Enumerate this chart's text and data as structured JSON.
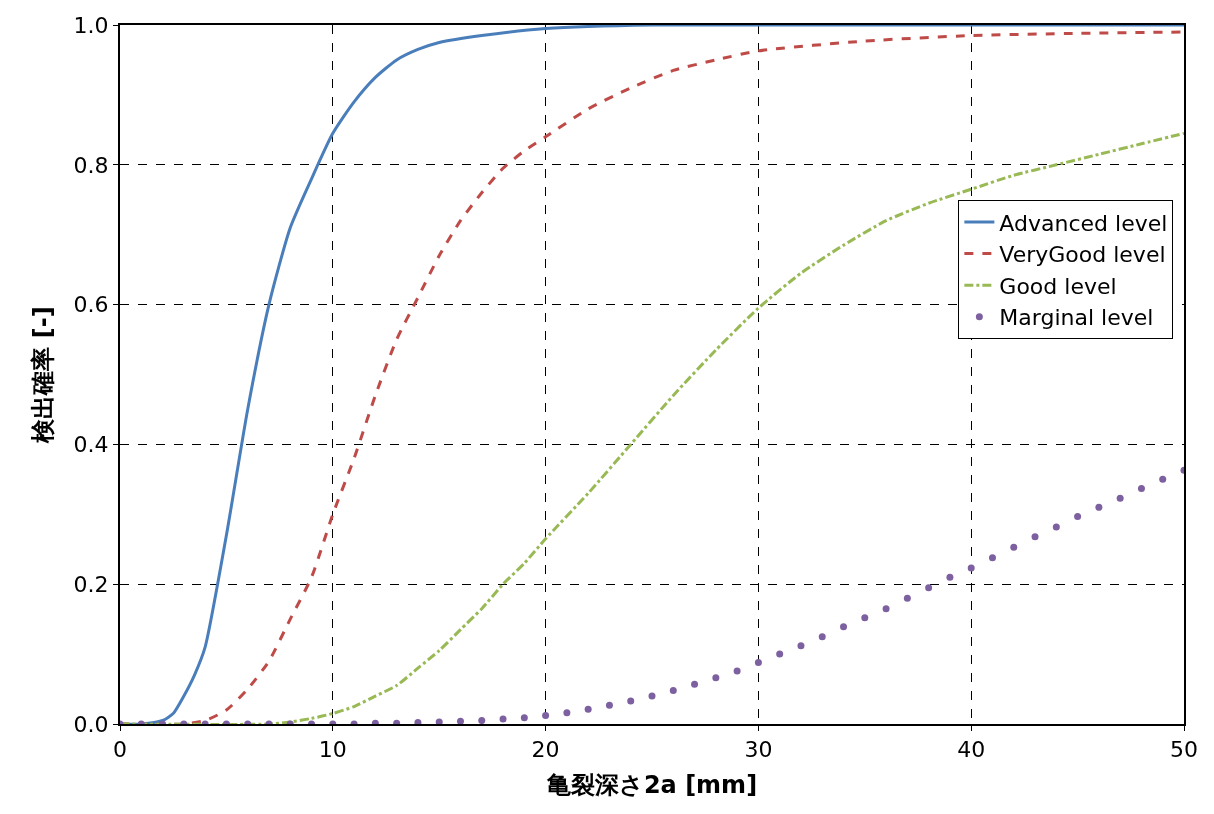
{
  "chart_data": {
    "type": "line",
    "xlabel": "亀裂深さ2a [mm]",
    "ylabel": "検出確率 [-]",
    "xlim": [
      0,
      50
    ],
    "xticks": [
      0,
      10,
      20,
      30,
      40,
      50
    ],
    "ylim": [
      0,
      1
    ],
    "yticks": [
      {
        "value": 0,
        "label": "0.0"
      },
      {
        "value": 0.2,
        "label": "0.2"
      },
      {
        "value": 0.4,
        "label": "0.4"
      },
      {
        "value": 0.6,
        "label": "0.6"
      },
      {
        "value": 0.8,
        "label": "0.8"
      },
      {
        "value": 1,
        "label": "1.0"
      }
    ],
    "grid": true,
    "legend": "right",
    "series": [
      {
        "name": "Advanced level",
        "color": "#4a7ebb",
        "line_style": "solid",
        "x": [
          0,
          1,
          2,
          2.5,
          3,
          3.5,
          4,
          5,
          6,
          7,
          8,
          9,
          10,
          11,
          12,
          13,
          14,
          15,
          17,
          20,
          25,
          50
        ],
        "values": [
          0,
          0,
          0.005,
          0.015,
          0.04,
          0.07,
          0.11,
          0.27,
          0.45,
          0.6,
          0.71,
          0.78,
          0.845,
          0.89,
          0.925,
          0.95,
          0.965,
          0.975,
          0.985,
          0.995,
          1,
          1
        ]
      },
      {
        "name": "VeryGood level",
        "color": "#be4b48",
        "line_style": "dashed",
        "x": [
          0,
          3,
          4,
          5,
          6,
          7,
          8,
          9,
          10,
          11,
          12,
          13,
          14,
          15,
          16,
          17,
          18,
          19,
          20,
          22,
          24,
          26,
          28,
          30,
          35,
          40,
          45,
          50
        ],
        "values": [
          0,
          0,
          0.005,
          0.02,
          0.05,
          0.09,
          0.15,
          0.21,
          0.3,
          0.38,
          0.47,
          0.55,
          0.61,
          0.67,
          0.72,
          0.76,
          0.795,
          0.82,
          0.84,
          0.88,
          0.91,
          0.935,
          0.95,
          0.963,
          0.977,
          0.985,
          0.988,
          0.99
        ]
      },
      {
        "name": "Good level",
        "color": "#98b954",
        "line_style": "dashdot",
        "x": [
          0,
          7,
          8,
          9,
          10,
          11,
          12,
          13,
          14,
          15,
          16,
          17,
          18,
          19,
          20,
          22,
          24,
          26,
          28,
          30,
          32,
          34,
          36,
          38,
          40,
          42,
          44,
          46,
          48,
          50
        ],
        "values": [
          0,
          0,
          0.003,
          0.008,
          0.015,
          0.025,
          0.04,
          0.055,
          0.08,
          0.105,
          0.135,
          0.165,
          0.2,
          0.23,
          0.265,
          0.33,
          0.4,
          0.47,
          0.535,
          0.595,
          0.645,
          0.685,
          0.72,
          0.745,
          0.765,
          0.785,
          0.8,
          0.815,
          0.83,
          0.845
        ]
      },
      {
        "name": "Marginal level",
        "color": "#7d60a0",
        "type": "scatter",
        "marker": "circle",
        "x": [
          0,
          1,
          2,
          3,
          4,
          5,
          6,
          7,
          8,
          9,
          10,
          11,
          12,
          13,
          14,
          15,
          16,
          17,
          18,
          19,
          20,
          21,
          22,
          23,
          24,
          25,
          26,
          27,
          28,
          29,
          30,
          31,
          32,
          33,
          34,
          35,
          36,
          37,
          38,
          39,
          40,
          41,
          42,
          43,
          44,
          45,
          46,
          47,
          48,
          49,
          50
        ],
        "values": [
          0,
          0,
          0,
          0,
          0,
          0,
          0,
          0,
          0,
          0,
          0,
          0,
          0.001,
          0.001,
          0.002,
          0.003,
          0.004,
          0.005,
          0.007,
          0.009,
          0.012,
          0.016,
          0.021,
          0.027,
          0.033,
          0.04,
          0.048,
          0.057,
          0.066,
          0.076,
          0.088,
          0.1,
          0.112,
          0.125,
          0.139,
          0.152,
          0.165,
          0.18,
          0.195,
          0.21,
          0.223,
          0.238,
          0.253,
          0.268,
          0.282,
          0.297,
          0.31,
          0.323,
          0.337,
          0.35,
          0.363
        ]
      }
    ]
  }
}
